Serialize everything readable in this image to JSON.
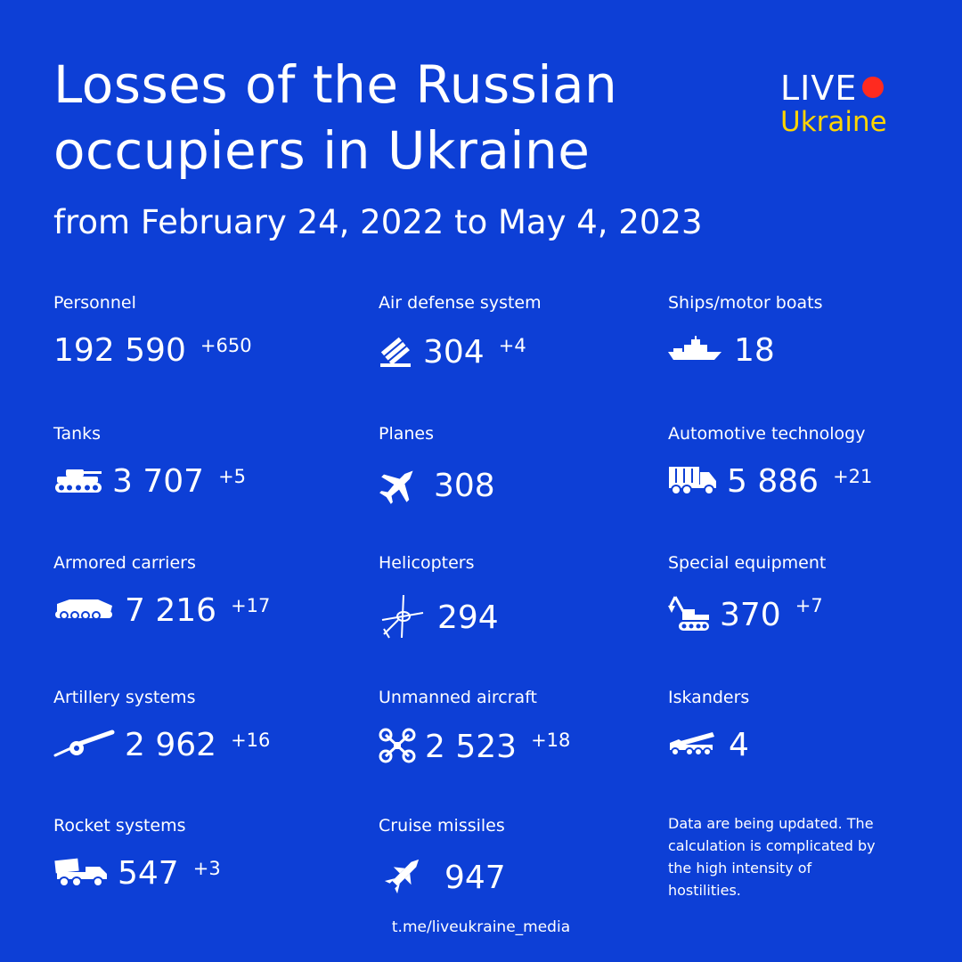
{
  "title": "Losses of the Russian occupiers in Ukraine",
  "subtitle": "from February 24, 2022 to May 4, 2023",
  "logo": {
    "live": "LIVE",
    "ukraine": "Ukraine"
  },
  "colors": {
    "background": "#0d3fd6",
    "text": "#ffffff",
    "logo_dot": "#ff2a1f",
    "logo_accent": "#ffd500"
  },
  "stats": [
    {
      "label": "Personnel",
      "value": "192 590",
      "delta": "+650",
      "icon": "none"
    },
    {
      "label": "Air defense system",
      "value": "304",
      "delta": "+4",
      "icon": "air-defense-icon"
    },
    {
      "label": "Ships/motor boats",
      "value": "18",
      "delta": "",
      "icon": "ship-icon"
    },
    {
      "label": "Tanks",
      "value": "3 707",
      "delta": "+5",
      "icon": "tank-icon"
    },
    {
      "label": "Planes",
      "value": "308",
      "delta": "",
      "icon": "plane-icon"
    },
    {
      "label": "Automotive technology",
      "value": "5 886",
      "delta": "+21",
      "icon": "truck-icon"
    },
    {
      "label": "Armored carriers",
      "value": "7 216",
      "delta": "+17",
      "icon": "armored-carrier-icon"
    },
    {
      "label": "Helicopters",
      "value": "294",
      "delta": "",
      "icon": "helicopter-icon"
    },
    {
      "label": "Special equipment",
      "value": "370",
      "delta": "+7",
      "icon": "excavator-icon"
    },
    {
      "label": "Artillery systems",
      "value": "2 962",
      "delta": "+16",
      "icon": "artillery-icon"
    },
    {
      "label": "Unmanned aircraft",
      "value": "2 523",
      "delta": "+18",
      "icon": "drone-icon"
    },
    {
      "label": "Iskanders",
      "value": "4",
      "delta": "",
      "icon": "iskander-icon"
    },
    {
      "label": "Rocket systems",
      "value": "547",
      "delta": "+3",
      "icon": "rocket-launcher-icon"
    },
    {
      "label": "Cruise missiles",
      "value": "947",
      "delta": "",
      "icon": "missile-icon"
    }
  ],
  "note": "Data are being updated. The calculation is complicated by the high intensity of hostilities.",
  "footer": "t.me/liveukraine_media"
}
